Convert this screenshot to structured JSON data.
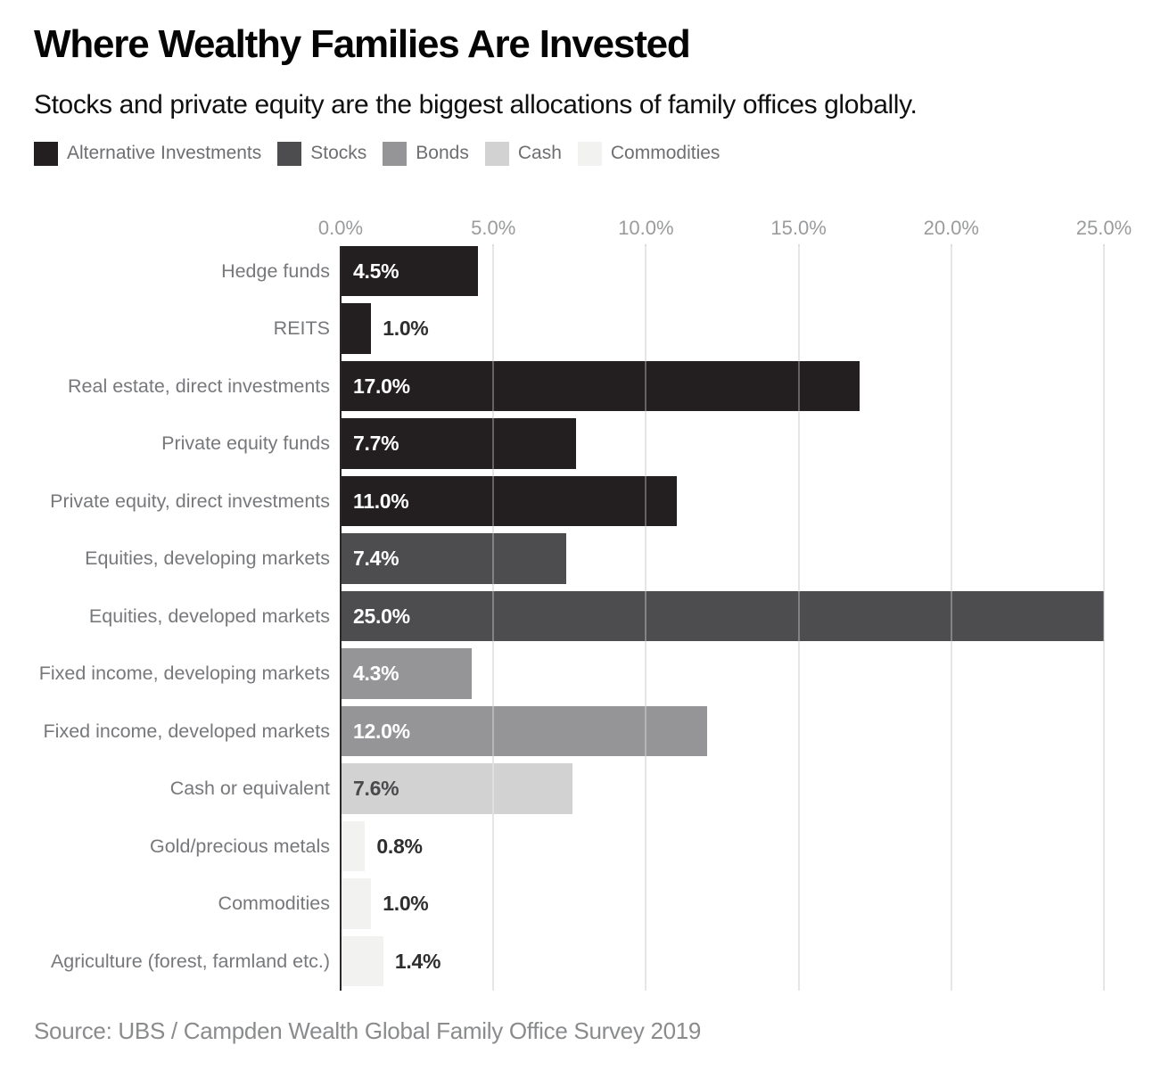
{
  "header": {
    "title": "Where Wealthy Families Are Invested",
    "subtitle": "Stocks and private equity are the biggest allocations of family offices globally."
  },
  "legend": {
    "items": [
      {
        "label": "Alternative Investments",
        "color": "#231f20"
      },
      {
        "label": "Stocks",
        "color": "#4d4d4f"
      },
      {
        "label": "Bonds",
        "color": "#959597"
      },
      {
        "label": "Cash",
        "color": "#d2d2d3"
      },
      {
        "label": "Commodities",
        "color": "#f2f2f0"
      }
    ]
  },
  "chart_data": {
    "type": "bar",
    "orientation": "horizontal",
    "title": "Where Wealthy Families Are Invested",
    "xlabel": "",
    "ylabel": "",
    "unit": "%",
    "xlim": [
      0,
      25
    ],
    "x_ticks": [
      "0.0%",
      "5.0%",
      "10.0%",
      "15.0%",
      "20.0%",
      "25.0%"
    ],
    "grid": "vertical",
    "legend_position": "top",
    "series_styles": {
      "Alternative Investments": {
        "bar_color": "#231f20",
        "inside_text_color": "#ffffff"
      },
      "Stocks": {
        "bar_color": "#4d4d4f",
        "inside_text_color": "#ffffff"
      },
      "Bonds": {
        "bar_color": "#959597",
        "inside_text_color": "#ffffff"
      },
      "Cash": {
        "bar_color": "#d2d2d3",
        "inside_text_color": "#4a4a4c"
      },
      "Commodities": {
        "bar_color": "#f2f2f0",
        "inside_text_color": "#2e2e2e"
      }
    },
    "outside_text_color": "#2e2e2e",
    "rows": [
      {
        "label": "Hedge funds",
        "value": 4.5,
        "display": "4.5%",
        "series": "Alternative Investments"
      },
      {
        "label": "REITS",
        "value": 1.0,
        "display": "1.0%",
        "series": "Alternative Investments"
      },
      {
        "label": "Real estate, direct investments",
        "value": 17.0,
        "display": "17.0%",
        "series": "Alternative Investments"
      },
      {
        "label": "Private equity funds",
        "value": 7.7,
        "display": "7.7%",
        "series": "Alternative Investments"
      },
      {
        "label": "Private equity, direct investments",
        "value": 11.0,
        "display": "11.0%",
        "series": "Alternative Investments"
      },
      {
        "label": "Equities, developing markets",
        "value": 7.4,
        "display": "7.4%",
        "series": "Stocks"
      },
      {
        "label": "Equities, developed markets",
        "value": 25.0,
        "display": "25.0%",
        "series": "Stocks"
      },
      {
        "label": "Fixed income, developing markets",
        "value": 4.3,
        "display": "4.3%",
        "series": "Bonds"
      },
      {
        "label": "Fixed income, developed markets",
        "value": 12.0,
        "display": "12.0%",
        "series": "Bonds"
      },
      {
        "label": "Cash or equivalent",
        "value": 7.6,
        "display": "7.6%",
        "series": "Cash"
      },
      {
        "label": "Gold/precious metals",
        "value": 0.8,
        "display": "0.8%",
        "series": "Commodities"
      },
      {
        "label": "Commodities",
        "value": 1.0,
        "display": "1.0%",
        "series": "Commodities"
      },
      {
        "label": "Agriculture (forest, farmland etc.)",
        "value": 1.4,
        "display": "1.4%",
        "series": "Commodities"
      }
    ]
  },
  "source": {
    "text": "Source: UBS / Campden Wealth Global Family Office Survey 2019"
  }
}
